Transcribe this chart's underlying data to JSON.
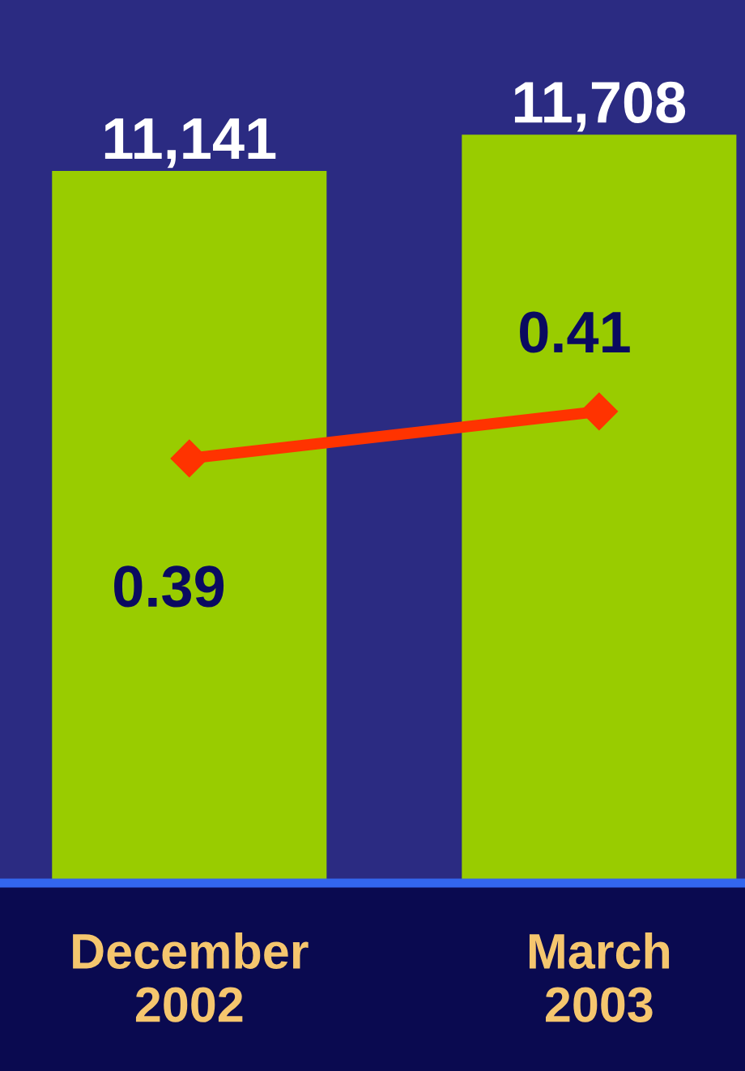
{
  "chart_data": {
    "type": "bar",
    "categories": [
      "December\n2002",
      "March\n2003"
    ],
    "series": [
      {
        "color": "#99cc00",
        "values": [
          11141,
          11708
        ],
        "value_labels": [
          "11,141",
          "11,708"
        ]
      },
      {
        "type": "line",
        "axis": "y2",
        "color": "#ff3300",
        "values": [
          0.39,
          0.41
        ],
        "value_labels": [
          "0.39",
          "0.41"
        ],
        "marker": "diamond"
      }
    ],
    "tick_labels": "x",
    "grid": false,
    "legend": false
  }
}
